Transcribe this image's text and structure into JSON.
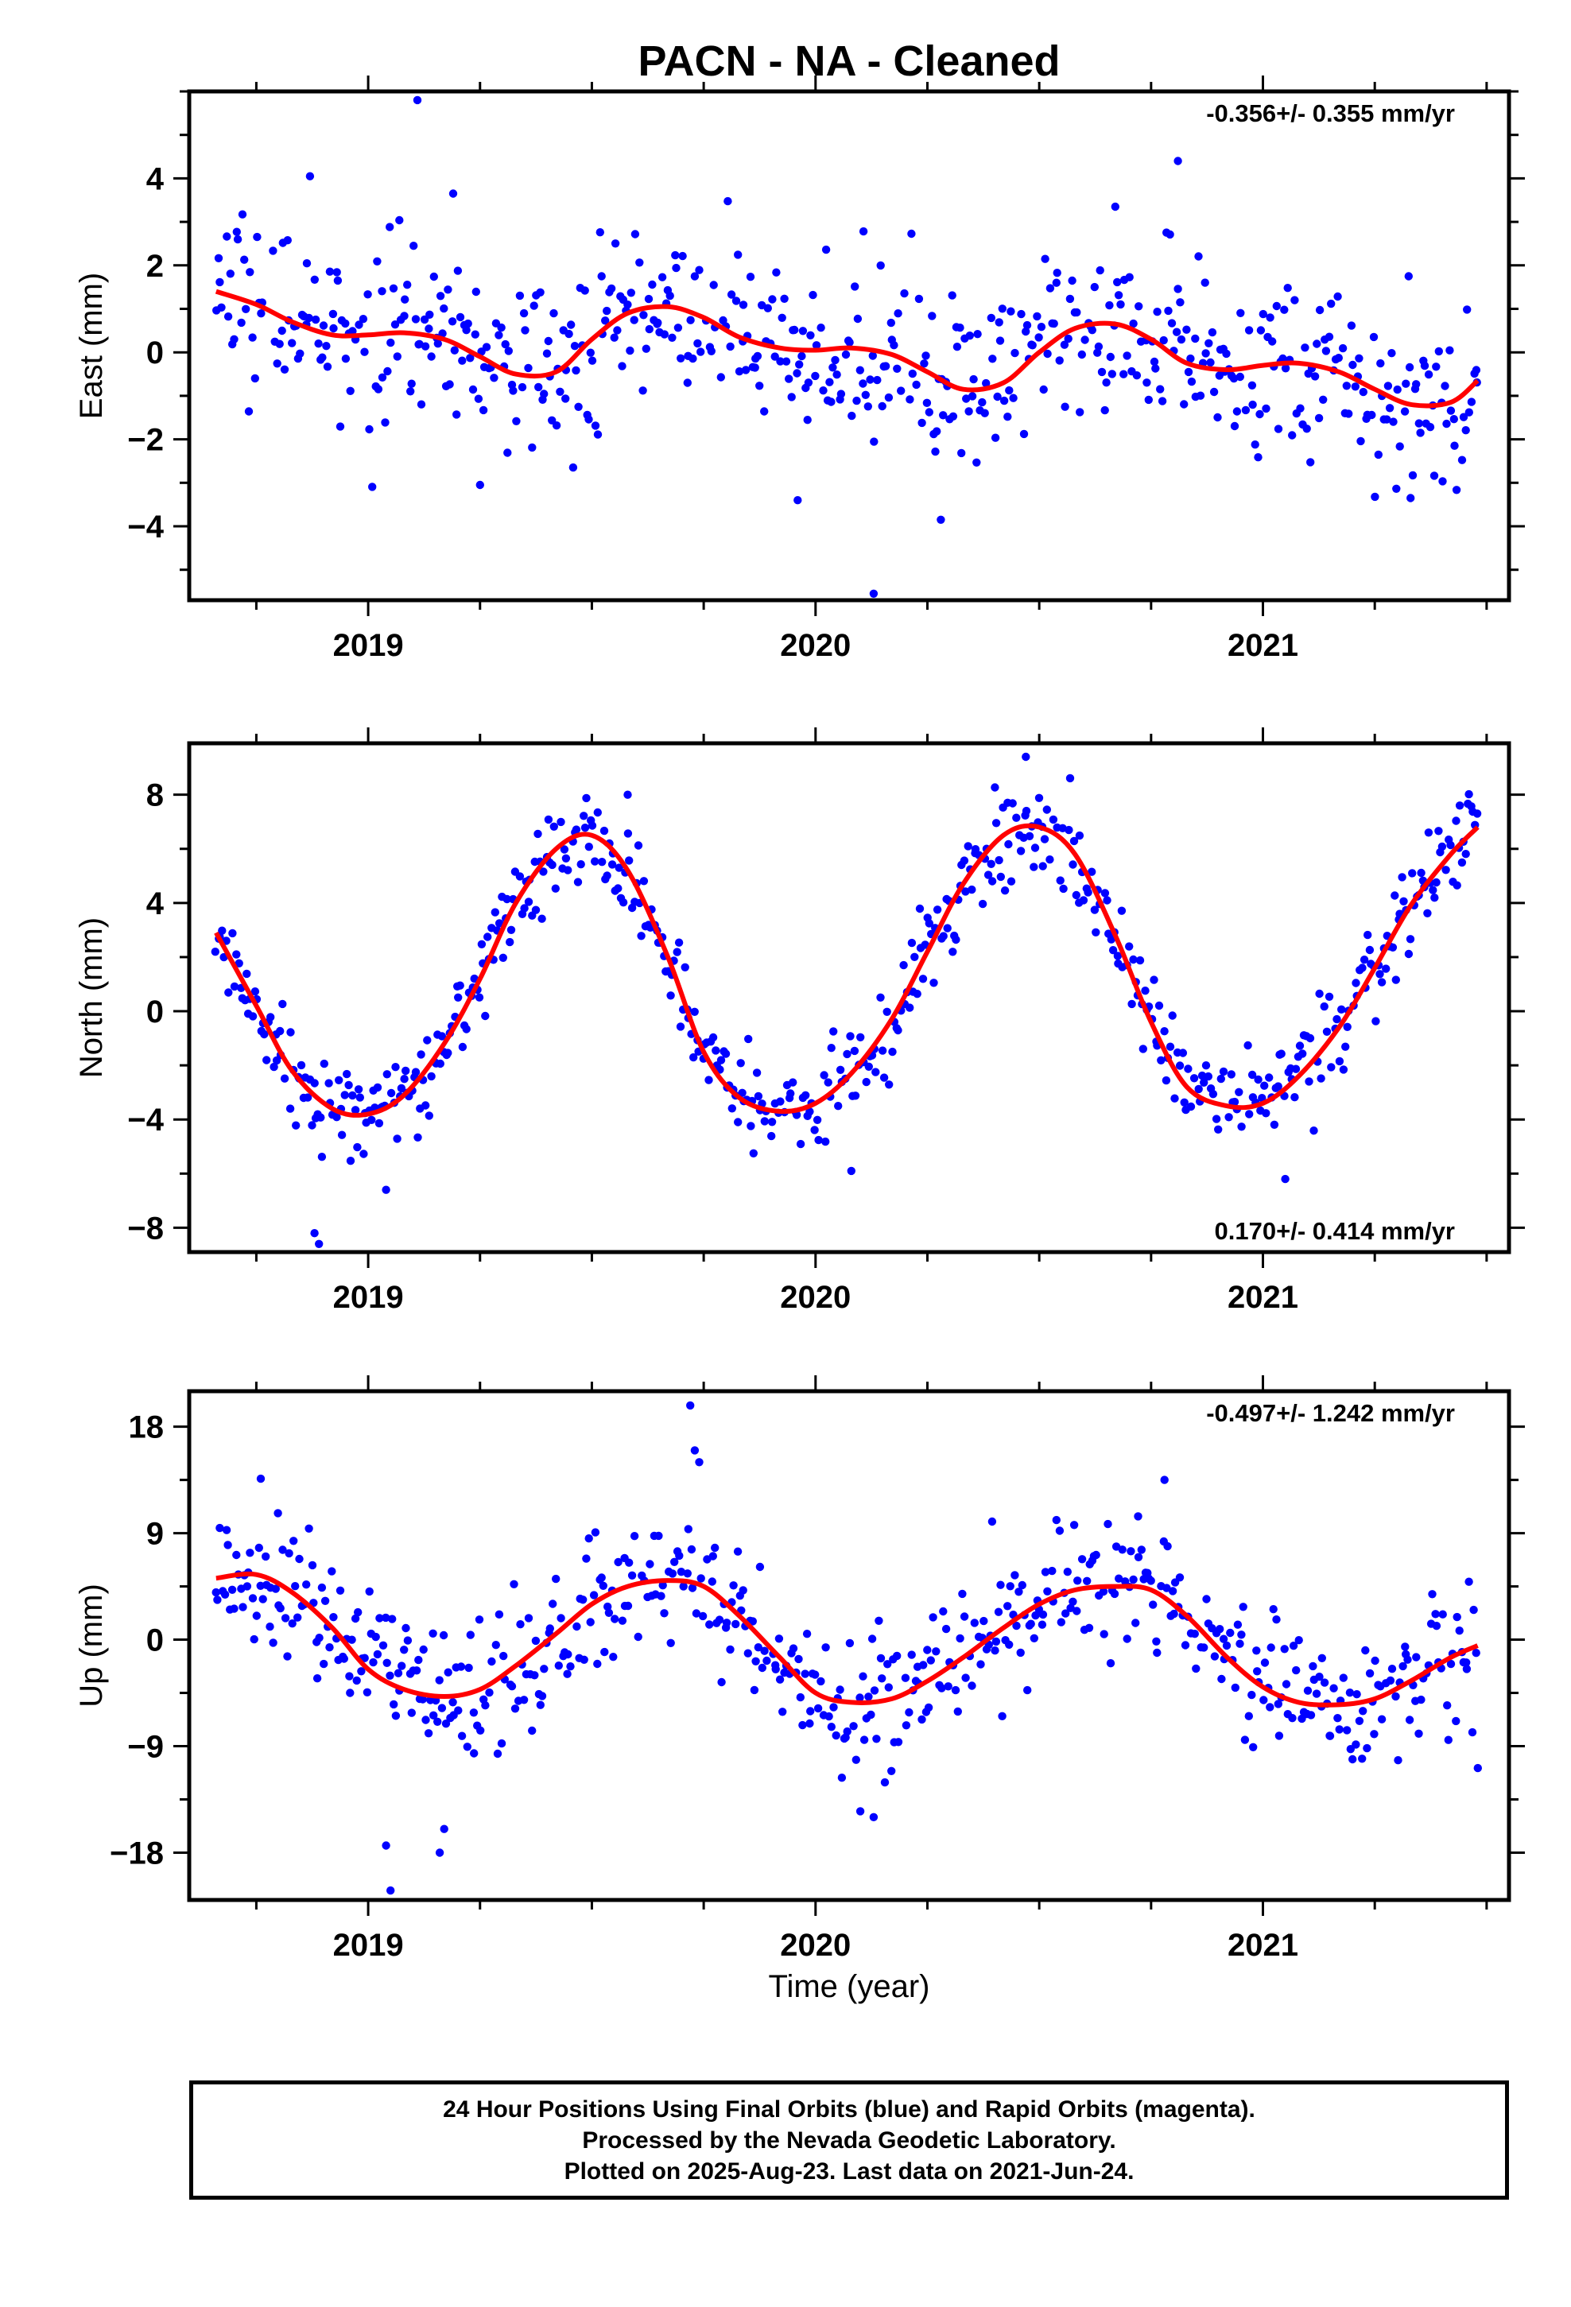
{
  "figure_title": "PACN  - NA - Cleaned",
  "time_axis_label": "Time (year)",
  "colors": {
    "points": "#0000ff",
    "fit": "#ff0000",
    "frame": "#000000"
  },
  "caption": {
    "line1": "24 Hour Positions Using Final Orbits (blue) and Rapid Orbits (magenta).",
    "line2": "Processed by the Nevada Geodetic Laboratory.",
    "line3": "Plotted on 2025-Aug-23. Last data on 2021-Jun-24."
  },
  "chart_data": [
    {
      "type": "scatter",
      "component": "east",
      "ylabel": "East (mm)",
      "rate_label": "-0.356+/- 0.355 mm/yr",
      "rate_position": "top-right",
      "xlim": [
        2018.6,
        2021.55
      ],
      "ylim": [
        -5.7,
        6.0
      ],
      "x_ticks": [
        2019,
        2020,
        2021
      ],
      "y_ticks": [
        -4,
        -2,
        0,
        2,
        4
      ],
      "y_tick_labels": [
        "−4",
        "−2",
        "0",
        "2",
        "4"
      ],
      "grid": false,
      "fit_curve": {
        "name": "Model fit",
        "x": [
          2018.66,
          2018.75,
          2018.83,
          2018.92,
          2019.0,
          2019.08,
          2019.17,
          2019.25,
          2019.33,
          2019.42,
          2019.5,
          2019.58,
          2019.67,
          2019.75,
          2019.83,
          2019.92,
          2020.0,
          2020.08,
          2020.17,
          2020.25,
          2020.33,
          2020.42,
          2020.5,
          2020.58,
          2020.67,
          2020.75,
          2020.83,
          2020.92,
          2021.0,
          2021.08,
          2021.17,
          2021.25,
          2021.33,
          2021.42,
          2021.48
        ],
        "y": [
          1.4,
          1.1,
          0.7,
          0.4,
          0.4,
          0.45,
          0.3,
          -0.1,
          -0.5,
          -0.45,
          0.3,
          0.9,
          1.05,
          0.8,
          0.35,
          0.1,
          0.05,
          0.1,
          -0.05,
          -0.45,
          -0.85,
          -0.7,
          0.0,
          0.55,
          0.65,
          0.3,
          -0.25,
          -0.4,
          -0.3,
          -0.25,
          -0.45,
          -0.85,
          -1.2,
          -1.15,
          -0.65
        ]
      },
      "scatter": {
        "name": "Daily positions",
        "x_range": [
          2018.66,
          2021.48
        ],
        "count": 620,
        "residual_sd": 1.0,
        "outliers": [
          [
            2019.11,
            5.8
          ],
          [
            2018.87,
            4.05
          ],
          [
            2019.19,
            3.65
          ],
          [
            2020.81,
            4.4
          ],
          [
            2020.67,
            3.35
          ],
          [
            2020.13,
            -5.55
          ],
          [
            2020.28,
            -3.85
          ],
          [
            2019.96,
            -3.4
          ],
          [
            2021.33,
            -3.35
          ],
          [
            2019.25,
            -3.05
          ]
        ]
      }
    },
    {
      "type": "scatter",
      "component": "north",
      "ylabel": "North (mm)",
      "rate_label": "0.170+/- 0.414 mm/yr",
      "rate_position": "bottom-right",
      "xlim": [
        2018.6,
        2021.55
      ],
      "ylim": [
        -8.9,
        9.9
      ],
      "x_ticks": [
        2019,
        2020,
        2021
      ],
      "y_ticks": [
        -8,
        -4,
        0,
        4,
        8
      ],
      "y_tick_labels": [
        "−8",
        "−4",
        "0",
        "4",
        "8"
      ],
      "grid": false,
      "fit_curve": {
        "name": "Model fit",
        "x": [
          2018.66,
          2018.75,
          2018.83,
          2018.92,
          2019.0,
          2019.08,
          2019.17,
          2019.25,
          2019.33,
          2019.42,
          2019.5,
          2019.58,
          2019.67,
          2019.75,
          2019.83,
          2019.92,
          2020.0,
          2020.08,
          2020.17,
          2020.25,
          2020.33,
          2020.42,
          2020.5,
          2020.58,
          2020.67,
          2020.75,
          2020.83,
          2020.92,
          2021.0,
          2021.08,
          2021.17,
          2021.25,
          2021.33,
          2021.42,
          2021.48
        ],
        "y": [
          2.9,
          0.2,
          -2.2,
          -3.6,
          -3.8,
          -3.1,
          -1.2,
          1.2,
          4.0,
          6.0,
          6.5,
          5.2,
          2.0,
          -1.5,
          -3.2,
          -3.7,
          -3.4,
          -2.3,
          -0.3,
          2.2,
          4.7,
          6.5,
          6.8,
          5.8,
          2.8,
          -0.4,
          -2.8,
          -3.5,
          -3.4,
          -2.4,
          -0.6,
          1.6,
          3.9,
          5.8,
          6.8
        ]
      },
      "scatter": {
        "name": "Daily positions",
        "x_range": [
          2018.66,
          2021.48
        ],
        "count": 620,
        "residual_sd": 0.85,
        "outliers": [
          [
            2018.89,
            -8.6
          ],
          [
            2018.88,
            -8.2
          ],
          [
            2019.04,
            -6.6
          ],
          [
            2020.47,
            9.4
          ],
          [
            2020.08,
            -5.9
          ],
          [
            2021.05,
            -6.2
          ],
          [
            2021.44,
            7.6
          ],
          [
            2019.58,
            8.0
          ]
        ]
      }
    },
    {
      "type": "scatter",
      "component": "up",
      "ylabel": "Up (mm)",
      "rate_label": "-0.497+/- 1.242 mm/yr",
      "rate_position": "top-right",
      "xlim": [
        2018.6,
        2021.55
      ],
      "ylim": [
        -22.0,
        21.0
      ],
      "x_ticks": [
        2019,
        2020,
        2021
      ],
      "y_ticks": [
        -18,
        -9,
        0,
        9,
        18
      ],
      "y_tick_labels": [
        "−18",
        "−9",
        "0",
        "9",
        "18"
      ],
      "grid": false,
      "fit_curve": {
        "name": "Model fit",
        "x": [
          2018.66,
          2018.75,
          2018.83,
          2018.92,
          2019.0,
          2019.08,
          2019.17,
          2019.25,
          2019.33,
          2019.42,
          2019.5,
          2019.58,
          2019.67,
          2019.75,
          2019.83,
          2019.92,
          2020.0,
          2020.08,
          2020.17,
          2020.25,
          2020.33,
          2020.42,
          2020.5,
          2020.58,
          2020.67,
          2020.75,
          2020.83,
          2020.92,
          2021.0,
          2021.08,
          2021.17,
          2021.25,
          2021.33,
          2021.42,
          2021.48
        ],
        "y": [
          5.2,
          5.5,
          4.0,
          1.0,
          -2.5,
          -4.2,
          -4.8,
          -4.2,
          -2.2,
          0.5,
          3.0,
          4.5,
          5.0,
          4.5,
          2.0,
          -1.5,
          -4.5,
          -5.3,
          -5.0,
          -3.5,
          -1.5,
          1.0,
          3.0,
          4.2,
          4.5,
          4.2,
          2.0,
          -1.5,
          -4.0,
          -5.3,
          -5.5,
          -5.0,
          -3.5,
          -1.5,
          -0.5
        ]
      },
      "scatter": {
        "name": "Daily positions",
        "x_range": [
          2018.66,
          2021.48
        ],
        "count": 620,
        "residual_sd": 3.0,
        "outliers": [
          [
            2019.72,
            19.8
          ],
          [
            2019.73,
            16.0
          ],
          [
            2019.74,
            15.0
          ],
          [
            2019.05,
            -21.2
          ],
          [
            2019.04,
            -17.4
          ],
          [
            2019.17,
            -16.0
          ],
          [
            2019.16,
            -18.0
          ],
          [
            2020.78,
            13.5
          ],
          [
            2020.13,
            -15.0
          ],
          [
            2020.1,
            -14.5
          ],
          [
            2018.76,
            13.6
          ]
        ]
      }
    }
  ]
}
